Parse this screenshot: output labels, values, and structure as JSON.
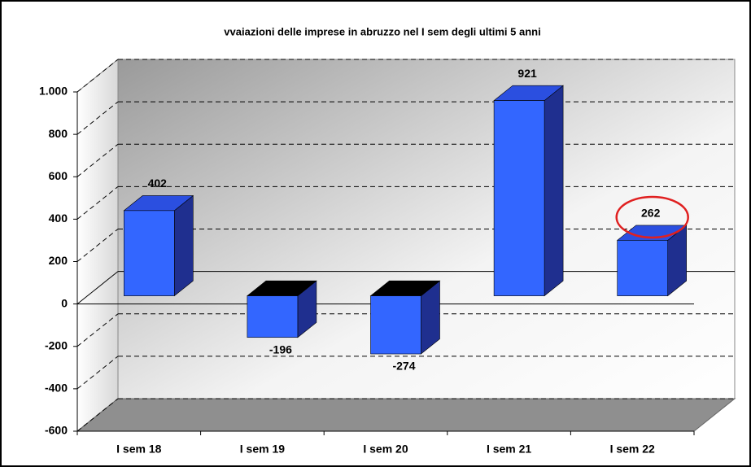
{
  "chart_data": {
    "type": "bar3d",
    "title": "vvaiazioni delle imprese in abruzzo  nel I sem degli ultimi 5 anni",
    "categories": [
      "I sem 18",
      "I sem 19",
      "I sem 20",
      "I sem 21",
      "I sem 22"
    ],
    "values": [
      402,
      -196,
      -274,
      921,
      262
    ],
    "color": "#3366ff",
    "ylim": [
      -600,
      1000
    ],
    "yticks": [
      -600,
      -400,
      -200,
      0,
      200,
      400,
      600,
      800,
      {
        "value": 1000,
        "label": "1.000"
      }
    ],
    "grid": true
  }
}
